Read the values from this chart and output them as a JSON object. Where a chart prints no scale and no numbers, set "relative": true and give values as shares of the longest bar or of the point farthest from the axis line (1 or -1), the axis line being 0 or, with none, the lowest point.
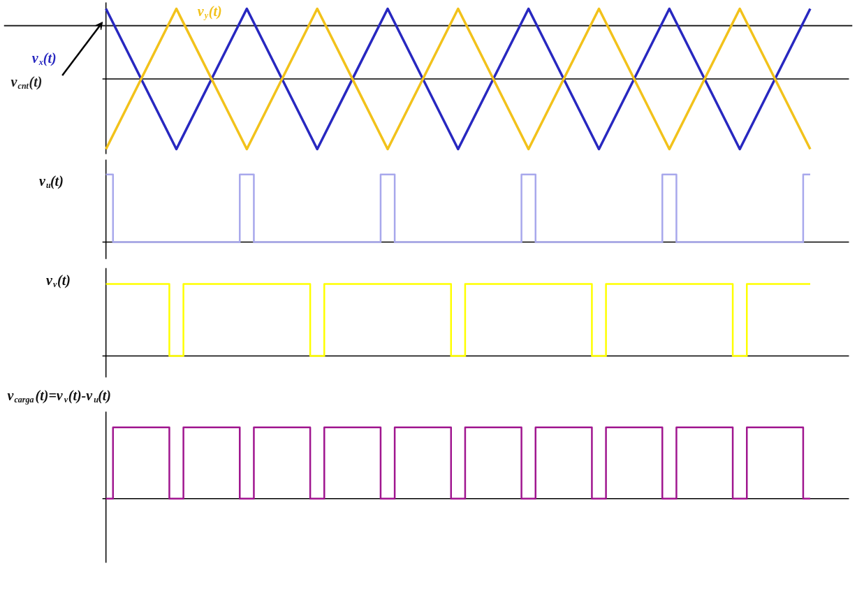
{
  "chart_data": [
    {
      "type": "line",
      "relative": true,
      "tick_labels": false,
      "categories": [
        null,
        null,
        null,
        null,
        null,
        null,
        null,
        null,
        null,
        null,
        null
      ],
      "ref_lines": [
        {
          "axis": "y",
          "value": 0.76,
          "label": "v$_{cnt}$(t)",
          "color": "#222222"
        }
      ],
      "series": [
        {
          "name": "v$_{x}$(t)",
          "color": "#2828c0",
          "values": [
            1,
            -1,
            1,
            -1,
            1,
            -1,
            1,
            -1,
            1,
            -1,
            1
          ]
        },
        {
          "name": "v$_{y}$(t)",
          "color": "#f2c21b",
          "values": [
            -1,
            1,
            -1,
            1,
            -1,
            1,
            -1,
            1,
            -1,
            1,
            -1
          ]
        }
      ]
    },
    {
      "type": "step",
      "relative": true,
      "tick_labels": false,
      "categories": [
        null,
        null,
        null,
        null,
        null,
        null,
        null,
        null,
        null,
        null,
        null,
        null,
        null,
        null,
        null,
        null,
        null,
        null,
        null,
        null,
        null,
        null,
        null,
        null,
        null,
        null,
        null,
        null,
        null,
        null,
        null,
        null,
        null,
        null,
        null,
        null,
        null,
        null,
        null,
        null,
        null,
        null,
        null,
        null,
        null,
        null,
        null,
        null,
        null,
        null,
        null,
        null,
        null,
        null,
        null,
        null,
        null,
        null,
        null,
        null,
        null,
        null,
        null,
        null,
        null,
        null,
        null,
        null,
        null,
        null,
        null,
        null,
        null,
        null,
        null,
        null,
        null,
        null,
        null,
        null,
        null,
        null,
        null,
        null,
        null,
        null,
        null,
        null,
        null,
        null,
        null,
        null,
        null,
        null,
        null,
        null,
        null,
        null,
        null,
        null,
        null
      ],
      "series": [
        {
          "name": "v$_{u}$(t)",
          "color": "#a8a8ec",
          "values": [
            1,
            0,
            0,
            0,
            0,
            0,
            0,
            0,
            0,
            0,
            0,
            0,
            0,
            0,
            0,
            0,
            0,
            0,
            0,
            1,
            1,
            0,
            0,
            0,
            0,
            0,
            0,
            0,
            0,
            0,
            0,
            0,
            0,
            0,
            0,
            0,
            0,
            0,
            0,
            1,
            1,
            0,
            0,
            0,
            0,
            0,
            0,
            0,
            0,
            0,
            0,
            0,
            0,
            0,
            0,
            0,
            0,
            0,
            0,
            1,
            1,
            0,
            0,
            0,
            0,
            0,
            0,
            0,
            0,
            0,
            0,
            0,
            0,
            0,
            0,
            0,
            0,
            0,
            0,
            1,
            1,
            0,
            0,
            0,
            0,
            0,
            0,
            0,
            0,
            0,
            0,
            0,
            0,
            0,
            0,
            0,
            0,
            0,
            0,
            1,
            1
          ]
        }
      ]
    },
    {
      "type": "step",
      "relative": true,
      "tick_labels": false,
      "categories": [
        null,
        null,
        null,
        null,
        null,
        null,
        null,
        null,
        null,
        null,
        null,
        null,
        null,
        null,
        null,
        null,
        null,
        null,
        null,
        null,
        null,
        null,
        null,
        null,
        null,
        null,
        null,
        null,
        null,
        null,
        null,
        null,
        null,
        null,
        null,
        null,
        null,
        null,
        null,
        null,
        null,
        null,
        null,
        null,
        null,
        null,
        null,
        null,
        null,
        null,
        null,
        null,
        null,
        null,
        null,
        null,
        null,
        null,
        null,
        null,
        null,
        null,
        null,
        null,
        null,
        null,
        null,
        null,
        null,
        null,
        null,
        null,
        null,
        null,
        null,
        null,
        null,
        null,
        null,
        null,
        null,
        null,
        null,
        null,
        null,
        null,
        null,
        null,
        null,
        null,
        null,
        null,
        null,
        null,
        null,
        null,
        null,
        null,
        null,
        null,
        null
      ],
      "series": [
        {
          "name": "v$_{v}$(t)",
          "color": "#ffff00",
          "values": [
            1,
            1,
            1,
            1,
            1,
            1,
            1,
            1,
            1,
            0,
            0,
            1,
            1,
            1,
            1,
            1,
            1,
            1,
            1,
            1,
            1,
            1,
            1,
            1,
            1,
            1,
            1,
            1,
            1,
            0,
            0,
            1,
            1,
            1,
            1,
            1,
            1,
            1,
            1,
            1,
            1,
            1,
            1,
            1,
            1,
            1,
            1,
            1,
            1,
            0,
            0,
            1,
            1,
            1,
            1,
            1,
            1,
            1,
            1,
            1,
            1,
            1,
            1,
            1,
            1,
            1,
            1,
            1,
            1,
            0,
            0,
            1,
            1,
            1,
            1,
            1,
            1,
            1,
            1,
            1,
            1,
            1,
            1,
            1,
            1,
            1,
            1,
            1,
            1,
            0,
            0,
            1,
            1,
            1,
            1,
            1,
            1,
            1,
            1,
            1,
            1
          ]
        }
      ]
    },
    {
      "type": "step",
      "relative": true,
      "tick_labels": false,
      "categories": [
        null,
        null,
        null,
        null,
        null,
        null,
        null,
        null,
        null,
        null,
        null,
        null,
        null,
        null,
        null,
        null,
        null,
        null,
        null,
        null,
        null,
        null,
        null,
        null,
        null,
        null,
        null,
        null,
        null,
        null,
        null,
        null,
        null,
        null,
        null,
        null,
        null,
        null,
        null,
        null,
        null,
        null,
        null,
        null,
        null,
        null,
        null,
        null,
        null,
        null,
        null,
        null,
        null,
        null,
        null,
        null,
        null,
        null,
        null,
        null,
        null,
        null,
        null,
        null,
        null,
        null,
        null,
        null,
        null,
        null,
        null,
        null,
        null,
        null,
        null,
        null,
        null,
        null,
        null,
        null,
        null,
        null,
        null,
        null,
        null,
        null,
        null,
        null,
        null,
        null,
        null,
        null,
        null,
        null,
        null,
        null,
        null,
        null,
        null,
        null,
        null
      ],
      "series": [
        {
          "name": "v$_{carga}$(t)=v$_{v}$(t)-v$_{u}$(t)",
          "color": "#a0168f",
          "values": [
            0,
            1,
            1,
            1,
            1,
            1,
            1,
            1,
            1,
            0,
            0,
            1,
            1,
            1,
            1,
            1,
            1,
            1,
            1,
            0,
            0,
            1,
            1,
            1,
            1,
            1,
            1,
            1,
            1,
            0,
            0,
            1,
            1,
            1,
            1,
            1,
            1,
            1,
            1,
            0,
            0,
            1,
            1,
            1,
            1,
            1,
            1,
            1,
            1,
            0,
            0,
            1,
            1,
            1,
            1,
            1,
            1,
            1,
            1,
            0,
            0,
            1,
            1,
            1,
            1,
            1,
            1,
            1,
            1,
            0,
            0,
            1,
            1,
            1,
            1,
            1,
            1,
            1,
            1,
            0,
            0,
            1,
            1,
            1,
            1,
            1,
            1,
            1,
            1,
            0,
            0,
            1,
            1,
            1,
            1,
            1,
            1,
            1,
            1,
            0,
            0
          ]
        }
      ]
    }
  ]
}
